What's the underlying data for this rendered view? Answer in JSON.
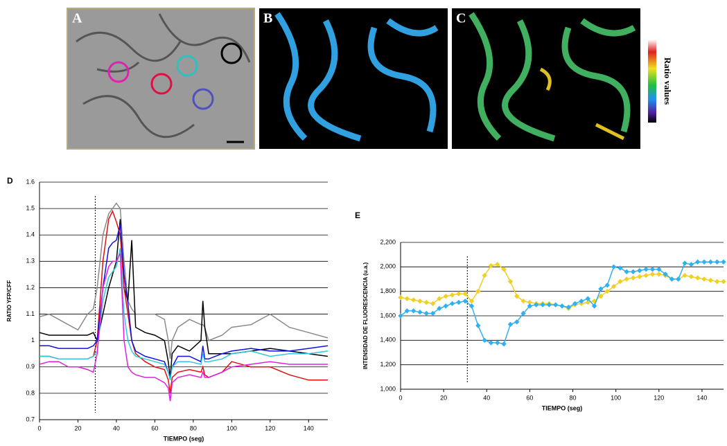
{
  "images": {
    "labels": [
      "A",
      "B",
      "C"
    ],
    "colorbar_label": "Ratio values"
  },
  "chart_data": [
    {
      "type": "line",
      "panel_label": "D",
      "y_label": "RATIO YFP/CFF",
      "x_label": "TIEMPO (seg)",
      "xlim": [
        0,
        150
      ],
      "ylim": [
        0.7,
        1.6
      ],
      "xticks": [
        0,
        20,
        40,
        60,
        80,
        100,
        120,
        140
      ],
      "yticks": [
        0.7,
        0.8,
        0.9,
        1,
        1.1,
        1.2,
        1.3,
        1.4,
        1.5,
        1.6
      ],
      "grid": true,
      "vline": 29,
      "x": [
        0,
        5,
        10,
        15,
        20,
        25,
        28,
        30,
        33,
        36,
        38,
        40,
        42,
        44,
        46,
        48,
        50,
        55,
        60,
        65,
        67,
        68,
        69,
        72,
        78,
        84,
        85,
        86,
        88,
        95,
        100,
        110,
        120,
        130,
        140,
        150
      ],
      "series": [
        {
          "color": "#8a8a8a",
          "values": [
            1.09,
            1.1,
            1.08,
            1.06,
            1.04,
            1.1,
            1.12,
            1.2,
            1.4,
            1.48,
            1.5,
            1.52,
            1.5,
            1.3,
            1.15,
            1.12,
            1.1,
            1.1,
            1.1,
            1.08,
            1.0,
            0.93,
            1.0,
            1.05,
            1.08,
            1.06,
            1.06,
            1.05,
            1.0,
            1.02,
            1.05,
            1.06,
            1.1,
            1.05,
            1.03,
            1.01
          ]
        },
        {
          "color": "#000000",
          "values": [
            1.03,
            1.02,
            1.02,
            1.02,
            1.02,
            1.02,
            1.03,
            1.0,
            1.1,
            1.2,
            1.25,
            1.3,
            1.46,
            1.2,
            1.15,
            1.38,
            1.05,
            1.03,
            1.02,
            1.0,
            0.92,
            0.86,
            0.95,
            0.98,
            0.96,
            1.0,
            1.15,
            1.05,
            0.95,
            0.95,
            0.95,
            0.96,
            0.97,
            0.96,
            0.95,
            0.94
          ]
        },
        {
          "color": "#e01010",
          "values": [
            0.94,
            0.94,
            0.93,
            0.93,
            0.93,
            0.93,
            0.94,
            1.0,
            1.3,
            1.46,
            1.49,
            1.45,
            1.4,
            1.2,
            1.1,
            1.0,
            0.95,
            0.92,
            0.9,
            0.89,
            0.85,
            0.8,
            0.86,
            0.88,
            0.89,
            0.88,
            0.9,
            0.87,
            0.86,
            0.88,
            0.92,
            0.9,
            0.9,
            0.87,
            0.85,
            0.85
          ]
        },
        {
          "color": "#1010e0",
          "values": [
            0.98,
            0.98,
            0.97,
            0.97,
            0.97,
            0.97,
            0.98,
            1.0,
            1.2,
            1.35,
            1.37,
            1.38,
            1.44,
            1.25,
            1.14,
            1.0,
            0.96,
            0.94,
            0.93,
            0.92,
            0.88,
            0.86,
            0.9,
            0.94,
            0.94,
            0.92,
            0.98,
            0.93,
            0.93,
            0.95,
            0.96,
            0.97,
            0.96,
            0.96,
            0.97,
            0.98
          ]
        },
        {
          "color": "#30c8e0",
          "values": [
            0.94,
            0.94,
            0.93,
            0.93,
            0.93,
            0.93,
            0.94,
            0.96,
            1.15,
            1.24,
            1.26,
            1.28,
            1.35,
            1.1,
            1.0,
            0.96,
            0.94,
            0.93,
            0.92,
            0.91,
            0.88,
            0.85,
            0.9,
            0.92,
            0.92,
            0.91,
            0.95,
            0.92,
            0.92,
            0.93,
            0.95,
            0.96,
            0.94,
            0.95,
            0.95,
            0.96
          ]
        },
        {
          "color": "#e020e0",
          "values": [
            0.91,
            0.92,
            0.92,
            0.9,
            0.9,
            0.89,
            0.88,
            0.95,
            1.2,
            1.28,
            1.3,
            1.3,
            1.33,
            1.0,
            0.9,
            0.88,
            0.87,
            0.86,
            0.86,
            0.84,
            0.82,
            0.77,
            0.84,
            0.86,
            0.87,
            0.86,
            0.88,
            0.86,
            0.86,
            0.88,
            0.9,
            0.91,
            0.92,
            0.91,
            0.91,
            0.91
          ]
        }
      ]
    },
    {
      "type": "line",
      "panel_label": "E",
      "y_label": "INTENSIDAD DE FLUORESCENCIA (u.a.)",
      "x_label": "TIEMPO (seg)",
      "xlim": [
        0,
        150
      ],
      "ylim": [
        1000,
        2200
      ],
      "xticks": [
        0,
        20,
        40,
        60,
        80,
        100,
        120,
        140
      ],
      "yticks": [
        {
          "value": 1000,
          "label": "1,000"
        },
        {
          "value": 1200,
          "label": "1,200"
        },
        {
          "value": 1400,
          "label": "1,400"
        },
        {
          "value": 1600,
          "label": "1,600"
        },
        {
          "value": 1800,
          "label": "1,800"
        },
        {
          "value": 2000,
          "label": "2,000"
        },
        {
          "value": 2200,
          "label": "2,200"
        }
      ],
      "grid": true,
      "vline": 31,
      "markers": true,
      "x": [
        0,
        3,
        6,
        9,
        12,
        15,
        18,
        21,
        24,
        27,
        30,
        33,
        36,
        39,
        42,
        45,
        48,
        51,
        54,
        57,
        60,
        63,
        66,
        69,
        72,
        75,
        78,
        81,
        84,
        87,
        90,
        93,
        96,
        99,
        102,
        105,
        108,
        111,
        114,
        117,
        120,
        123,
        126,
        129,
        132,
        135,
        138,
        141,
        144,
        147,
        150
      ],
      "series": [
        {
          "color": "#f0d020",
          "values": [
            1750,
            1740,
            1730,
            1720,
            1710,
            1700,
            1740,
            1760,
            1770,
            1780,
            1780,
            1720,
            1800,
            1930,
            2010,
            2020,
            1980,
            1880,
            1760,
            1720,
            1710,
            1700,
            1700,
            1700,
            1690,
            1680,
            1660,
            1690,
            1700,
            1710,
            1720,
            1760,
            1800,
            1840,
            1880,
            1900,
            1910,
            1920,
            1930,
            1940,
            1940,
            1930,
            1900,
            1900,
            1930,
            1920,
            1910,
            1900,
            1890,
            1880,
            1880
          ]
        },
        {
          "color": "#30b0f0",
          "values": [
            1600,
            1640,
            1640,
            1630,
            1620,
            1620,
            1660,
            1680,
            1700,
            1710,
            1720,
            1680,
            1520,
            1400,
            1380,
            1380,
            1370,
            1530,
            1550,
            1620,
            1680,
            1690,
            1690,
            1690,
            1690,
            1680,
            1670,
            1700,
            1720,
            1740,
            1680,
            1820,
            1850,
            2000,
            1990,
            1960,
            1960,
            1970,
            1980,
            1980,
            1980,
            1940,
            1900,
            1900,
            2030,
            2020,
            2040,
            2040,
            2040,
            2040,
            2040
          ]
        }
      ]
    }
  ]
}
